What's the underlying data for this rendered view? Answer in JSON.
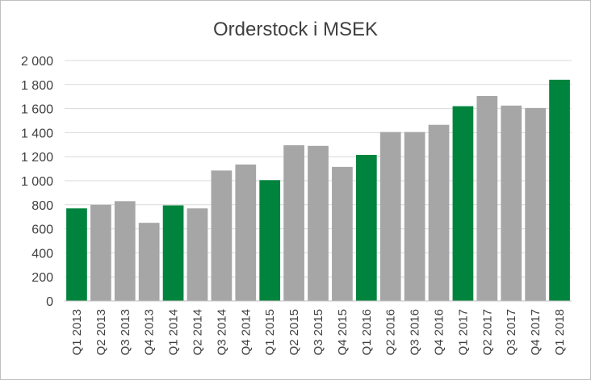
{
  "chart_data": {
    "type": "bar",
    "title": "Orderstock i MSEK",
    "xlabel": "",
    "ylabel": "",
    "ylim": [
      0,
      2000
    ],
    "yticks": [
      0,
      200,
      400,
      600,
      800,
      1000,
      1200,
      1400,
      1600,
      1800,
      2000
    ],
    "ytick_labels": [
      "0",
      "200",
      "400",
      "600",
      "800",
      "1 000",
      "1 200",
      "1 400",
      "1 600",
      "1 800",
      "2 000"
    ],
    "grid": true,
    "categories": [
      "Q1 2013",
      "Q2 2013",
      "Q3 2013",
      "Q4 2013",
      "Q1 2014",
      "Q2 2014",
      "Q3 2014",
      "Q4 2014",
      "Q1 2015",
      "Q2 2015",
      "Q3 2015",
      "Q4 2015",
      "Q1 2016",
      "Q2 2016",
      "Q3 2016",
      "Q4 2016",
      "Q1 2017",
      "Q2 2017",
      "Q3 2017",
      "Q4 2017",
      "Q1 2018"
    ],
    "values": [
      770,
      800,
      830,
      650,
      795,
      770,
      1085,
      1135,
      1005,
      1295,
      1290,
      1115,
      1215,
      1405,
      1405,
      1465,
      1620,
      1705,
      1625,
      1605,
      1840
    ],
    "colors": {
      "highlight": "#00843d",
      "default": "#a6a6a6",
      "gridline": "#d9d9d9",
      "axis": "#bfbfbf"
    },
    "highlight_categories": [
      "Q1 2013",
      "Q1 2014",
      "Q1 2015",
      "Q1 2016",
      "Q1 2017",
      "Q1 2018"
    ]
  }
}
